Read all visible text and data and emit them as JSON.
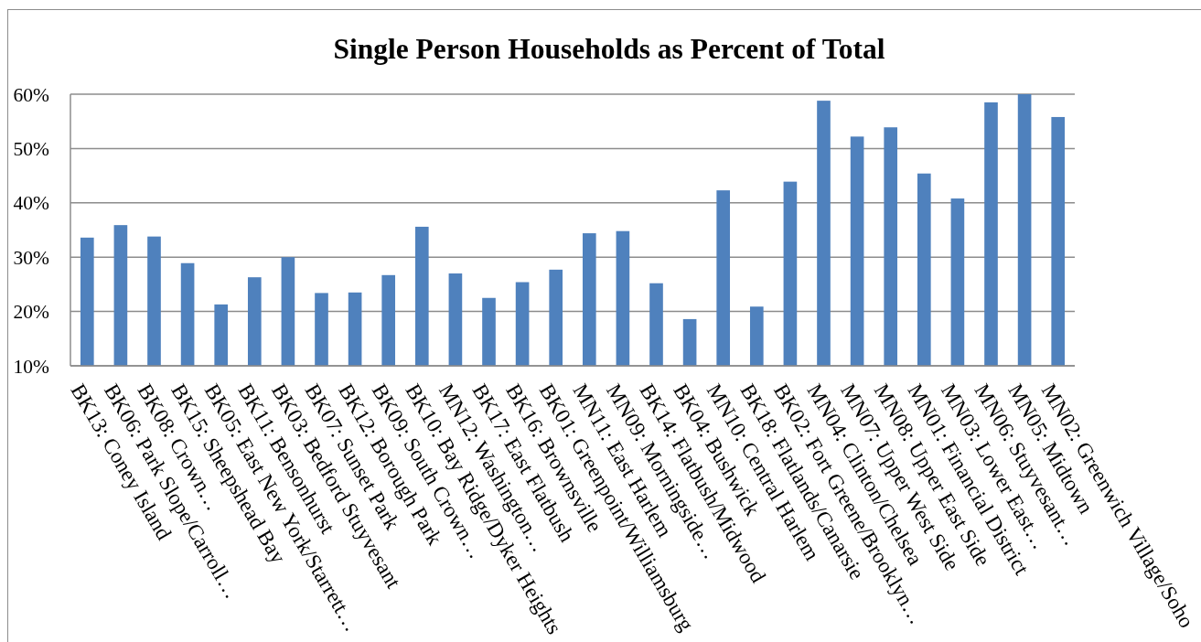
{
  "chart_data": {
    "type": "bar",
    "title": "Single Person Households as Percent of Total",
    "categories": [
      "BK13: Coney Island",
      "BK06: Park Slope/Carroll…",
      "BK08: Crown…",
      "BK15: Sheepshead Bay",
      "BK05: East New York/Starrett…",
      "BK11: Bensonhurst",
      "BK03: Bedford Stuyvesant",
      "BK07: Sunset Park",
      "BK12: Borough Park",
      "BK09: South Crown…",
      "BK10: Bay Ridge/Dyker Heights",
      "MN12: Washington…",
      "BK17: East Flatbush",
      "BK16: Brownsville",
      "BK01: Greenpoint/Williamsburg",
      "MN11: East Harlem",
      "MN09: Morningside…",
      "BK14: Flatbush/Midwood",
      "BK04: Bushwick",
      "MN10: Central Harlem",
      "BK18: Flatlands/Canarsie",
      "BK02: Fort Greene/Brooklyn…",
      "MN04: Clinton/Chelsea",
      "MN07: Upper West Side",
      "MN08: Upper East Side",
      "MN01: Financial District",
      "MN03: Lower East…",
      "MN06: Stuyvesant…",
      "MN05: Midtown",
      "MN02: Greenwich Village/Soho"
    ],
    "values": [
      33.6,
      35.9,
      33.8,
      28.9,
      21.3,
      26.3,
      30.0,
      23.4,
      23.5,
      26.7,
      35.6,
      27.0,
      22.5,
      25.4,
      27.7,
      34.4,
      34.8,
      25.2,
      18.6,
      42.3,
      20.9,
      43.9,
      58.8,
      52.2,
      53.9,
      45.4,
      40.8,
      58.5,
      60.0,
      55.8
    ],
    "color": "#4f81bd",
    "ylim": [
      10,
      60
    ],
    "yticks": [
      {
        "value": 10,
        "label": "10%"
      },
      {
        "value": 20,
        "label": "20%"
      },
      {
        "value": 30,
        "label": "30%"
      },
      {
        "value": 40,
        "label": "40%"
      },
      {
        "value": 50,
        "label": "50%"
      },
      {
        "value": 60,
        "label": "60%"
      }
    ],
    "grid": "y"
  }
}
